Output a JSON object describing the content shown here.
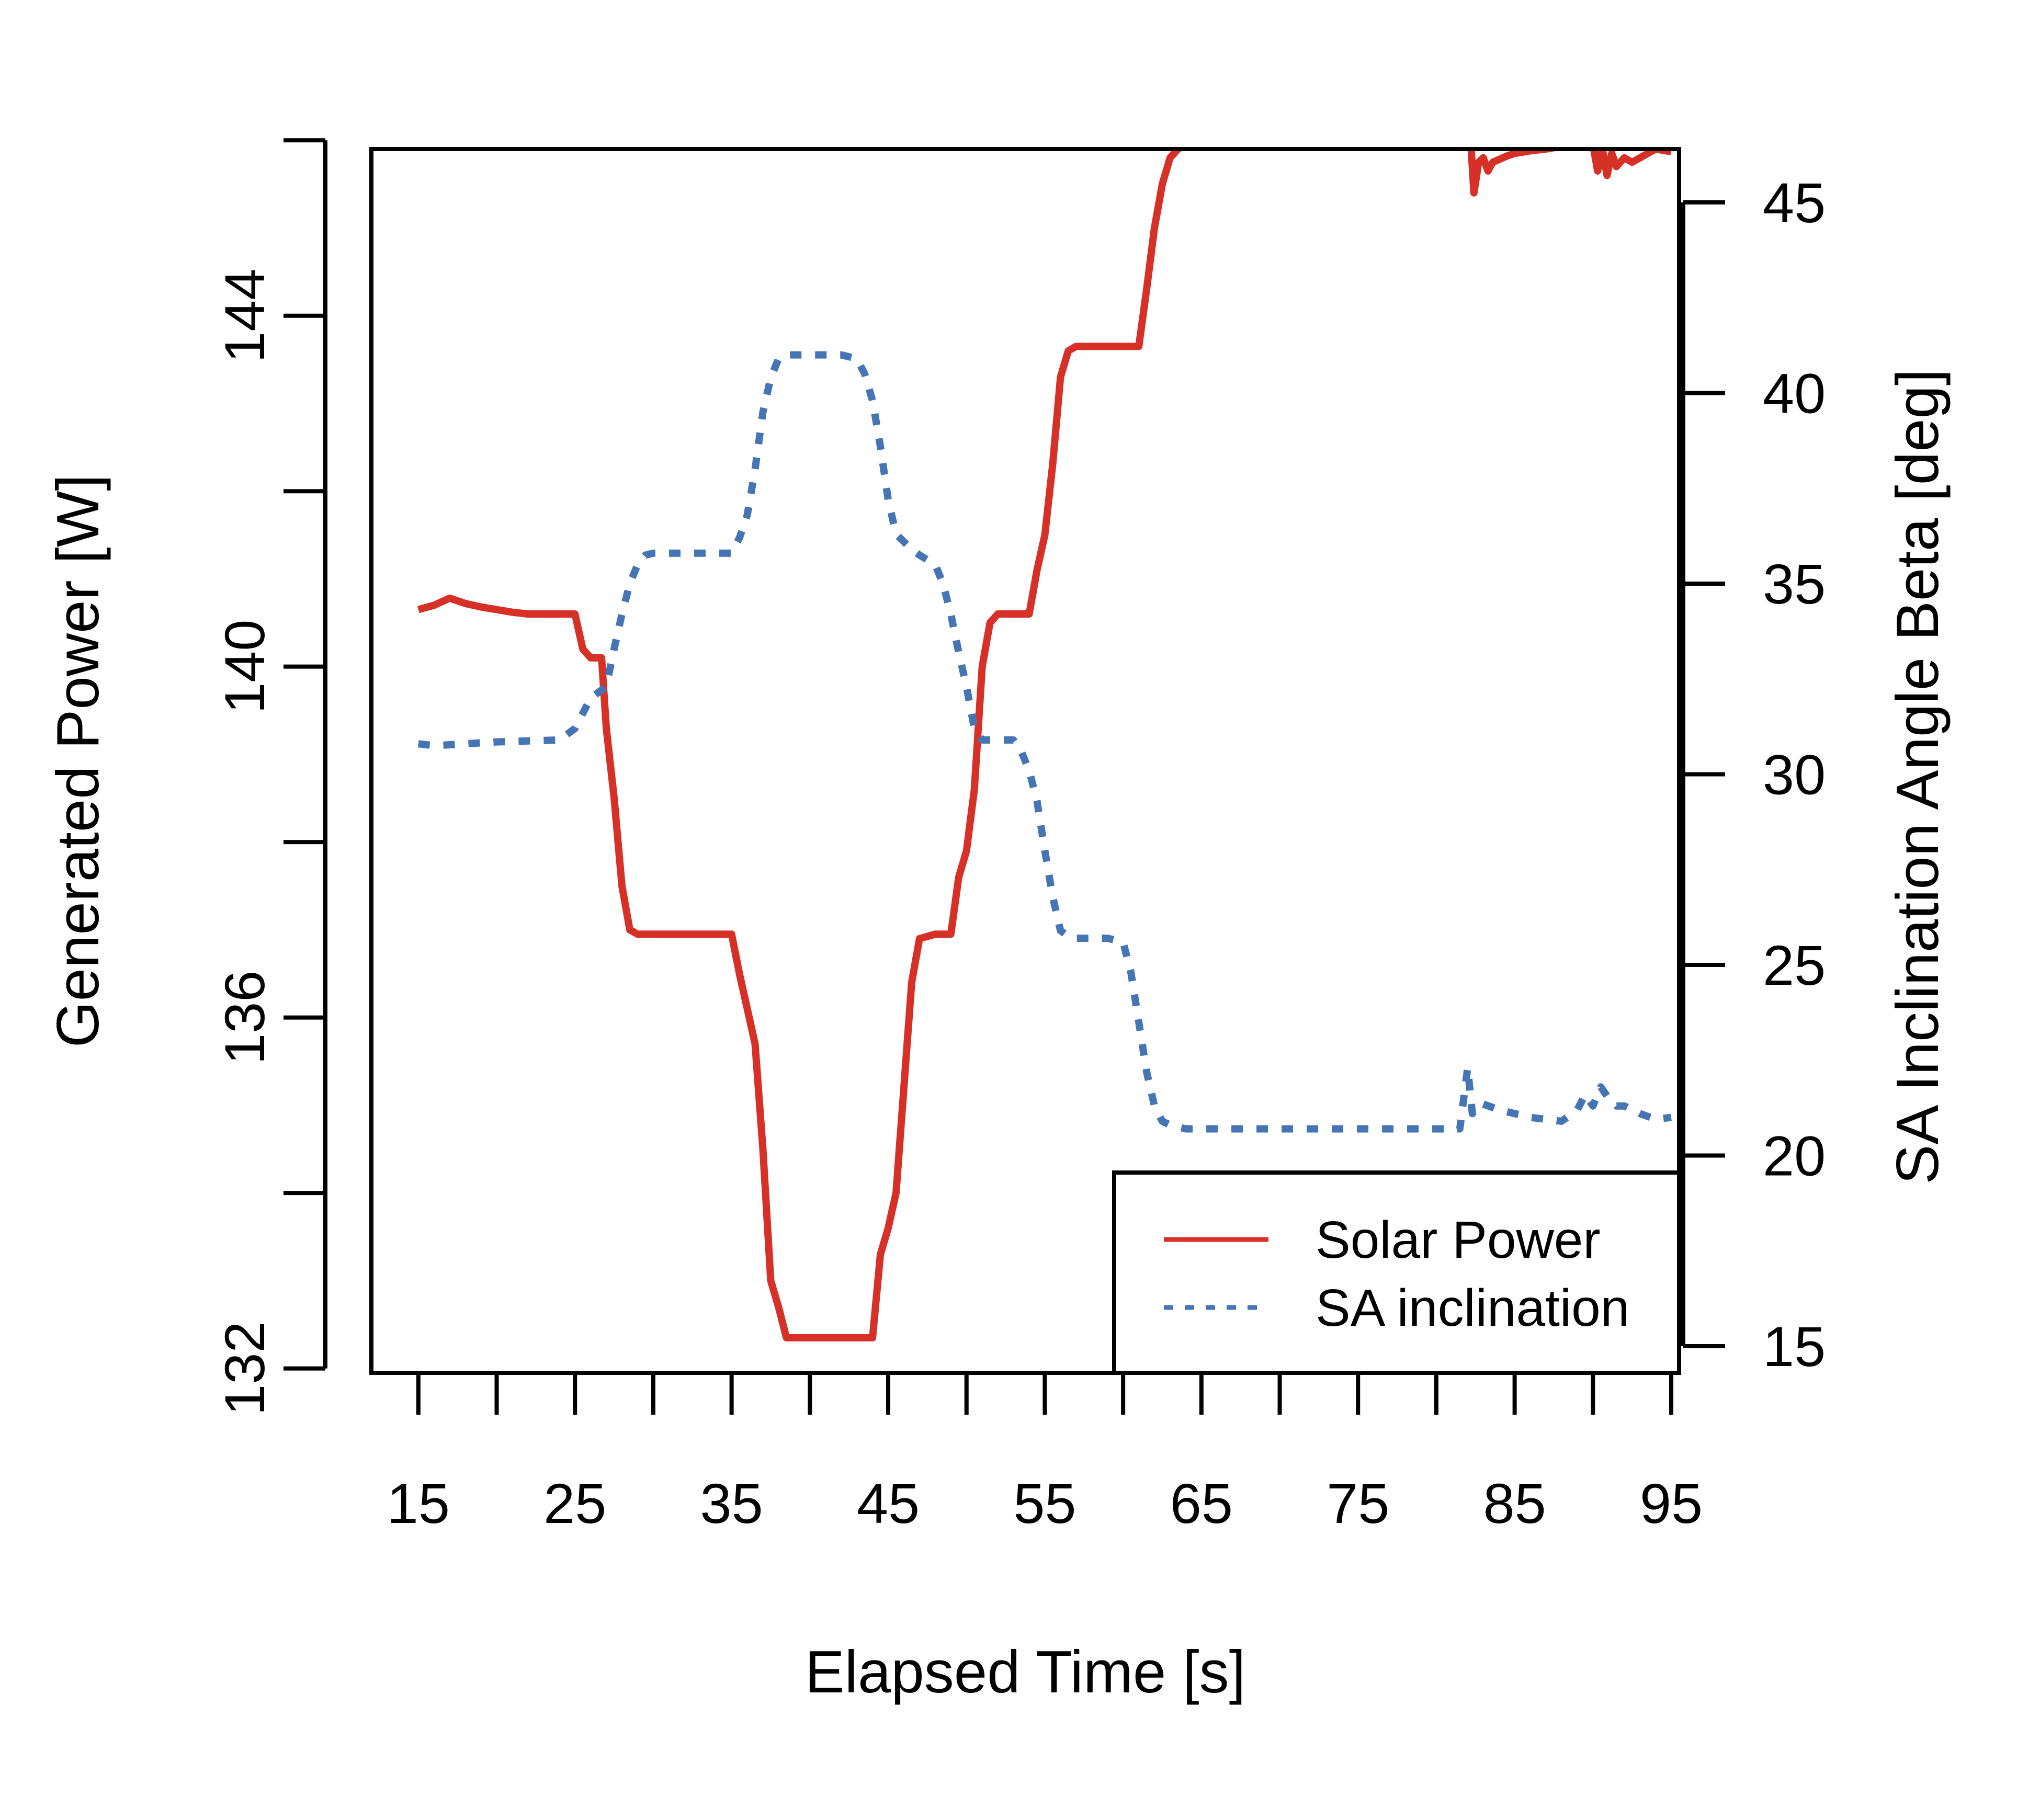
{
  "colors": {
    "solar_power": "#d73027",
    "sa_inclination": "#4575b4",
    "axis": "#000000",
    "background": "#ffffff"
  },
  "chart_data": {
    "type": "line",
    "title": "",
    "xlabel": "Elapsed Time [s]",
    "ylabel": "Generated Power [W]",
    "y2label": "SA Inclination Angle Beta [deg]",
    "xlim": [
      12,
      95.5
    ],
    "ylim": [
      131.95,
      145.9
    ],
    "y2lim": [
      14.3,
      46.4
    ],
    "x_ticks": [
      15,
      20,
      25,
      30,
      35,
      40,
      45,
      50,
      55,
      60,
      65,
      70,
      75,
      80,
      85,
      90,
      95
    ],
    "x_tick_labels": [
      "15",
      "25",
      "35",
      "45",
      "55",
      "65",
      "75",
      "85",
      "95"
    ],
    "x_tick_label_values": [
      15,
      25,
      35,
      45,
      55,
      65,
      75,
      85,
      95
    ],
    "y_ticks": [
      132,
      134,
      136,
      138,
      140,
      142,
      144,
      146
    ],
    "y_tick_labels": [
      "132",
      "136",
      "140",
      "144"
    ],
    "y_tick_label_values": [
      132,
      136,
      140,
      144
    ],
    "y2_ticks": [
      15,
      20,
      25,
      30,
      35,
      40,
      45
    ],
    "y2_tick_labels": [
      "15",
      "20",
      "25",
      "30",
      "35",
      "40",
      "45"
    ],
    "grid": false,
    "legend": {
      "position": "bottom-right",
      "entries": [
        "Solar Power",
        "SA inclination"
      ]
    },
    "series": [
      {
        "name": "Solar Power",
        "axis": "left",
        "style": "solid",
        "x": [
          15,
          16,
          17,
          18,
          19,
          20,
          21,
          22,
          25,
          25.5,
          26,
          26.7,
          27,
          27.5,
          28,
          28.5,
          29,
          30,
          35,
          35.5,
          36,
          36.5,
          37,
          37.5,
          38,
          38.5,
          39,
          40,
          41,
          44,
          44.5,
          45,
          45.5,
          46,
          46.5,
          47,
          48,
          49,
          49.5,
          50,
          50.5,
          51,
          51.5,
          52,
          53,
          54,
          54.5,
          55,
          55.5,
          56,
          56.5,
          57,
          58,
          59,
          60,
          61,
          61.5,
          62,
          62.5,
          63,
          63.5,
          64,
          64.5,
          65,
          67,
          70,
          75,
          80,
          82,
          82.2,
          82.4,
          82.7,
          83,
          83.3,
          83.6,
          84,
          84.5,
          85,
          86,
          87,
          88,
          89,
          90,
          90.3,
          90.6,
          90.9,
          91.2,
          91.5,
          92,
          92.5,
          93,
          93.5,
          94,
          95
        ],
        "values": [
          140.65,
          140.7,
          140.78,
          140.72,
          140.68,
          140.65,
          140.62,
          140.6,
          140.6,
          140.2,
          140.1,
          140.1,
          139.3,
          138.5,
          137.5,
          137.0,
          136.95,
          136.95,
          136.95,
          136.5,
          136.1,
          135.7,
          134.5,
          133.0,
          132.7,
          132.35,
          132.35,
          132.35,
          132.35,
          132.35,
          133.3,
          133.6,
          134.0,
          135.2,
          136.4,
          136.9,
          136.95,
          136.95,
          137.6,
          137.9,
          138.6,
          140.0,
          140.5,
          140.6,
          140.6,
          140.6,
          141.1,
          141.5,
          142.3,
          143.3,
          143.6,
          143.65,
          143.65,
          143.65,
          143.65,
          143.65,
          144.3,
          145.0,
          145.5,
          145.8,
          145.9,
          145.95,
          145.98,
          146.0,
          146.0,
          146.0,
          146.0,
          146.0,
          146.0,
          145.98,
          145.4,
          145.75,
          145.8,
          145.65,
          145.75,
          145.78,
          145.82,
          145.85,
          145.88,
          145.9,
          145.93,
          145.95,
          145.95,
          145.65,
          145.9,
          145.6,
          145.85,
          145.7,
          145.8,
          145.75,
          145.8,
          145.85,
          145.9,
          145.87
        ]
      },
      {
        "name": "SA inclination",
        "axis": "right",
        "style": "dotted",
        "x": [
          15,
          16,
          18,
          20,
          24,
          25,
          25.5,
          26,
          27,
          27.5,
          28,
          28.5,
          29,
          29.5,
          30,
          31,
          35,
          35.5,
          36,
          36.5,
          37,
          37.5,
          38,
          38.5,
          39,
          40,
          42,
          43,
          43.5,
          44,
          44.5,
          45,
          45.5,
          46,
          46.5,
          47,
          48,
          48.5,
          49,
          49.5,
          50,
          50.5,
          51,
          51.5,
          52,
          53,
          53.5,
          54,
          54.5,
          55,
          55.5,
          56,
          56.5,
          57,
          58,
          59,
          60,
          60.5,
          61,
          61.5,
          62,
          62.5,
          63,
          63.5,
          64,
          65,
          66,
          70,
          75,
          80,
          81.5,
          82,
          82.3,
          82.6,
          83,
          84,
          85,
          86,
          87,
          88,
          89,
          89.5,
          90,
          90.5,
          91,
          91.5,
          92,
          92.5,
          93,
          94,
          95
        ],
        "values": [
          30.8,
          30.75,
          30.8,
          30.85,
          30.9,
          31.2,
          31.6,
          32.0,
          32.3,
          33.3,
          34.2,
          35.0,
          35.5,
          35.75,
          35.8,
          35.8,
          35.8,
          36.2,
          36.8,
          38.0,
          39.5,
          40.4,
          40.9,
          41.0,
          41.0,
          41.0,
          41.0,
          40.9,
          40.5,
          39.8,
          38.6,
          37.2,
          36.3,
          36.1,
          35.9,
          35.75,
          35.5,
          35.0,
          34.2,
          33.2,
          32.3,
          31.2,
          30.9,
          30.9,
          30.9,
          30.9,
          30.6,
          30.1,
          29.3,
          28.0,
          26.8,
          25.9,
          25.75,
          25.7,
          25.7,
          25.7,
          25.6,
          24.8,
          23.5,
          22.2,
          21.3,
          20.9,
          20.8,
          20.75,
          20.7,
          20.7,
          20.7,
          20.7,
          20.7,
          20.7,
          20.7,
          22.3,
          21.1,
          21.3,
          21.35,
          21.2,
          21.1,
          21.0,
          20.95,
          20.9,
          21.2,
          21.6,
          21.3,
          21.8,
          21.5,
          21.3,
          21.3,
          21.2,
          21.1,
          20.95,
          21.0
        ]
      }
    ]
  }
}
